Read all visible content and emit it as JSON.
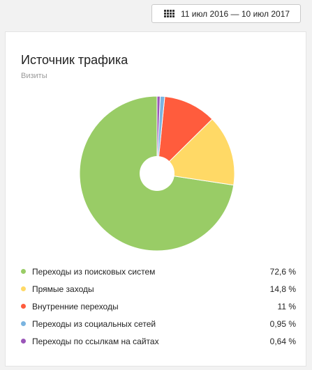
{
  "header": {
    "date_range": "11 июл 2016 — 10 июл 2017",
    "date_icon": "calendar-icon"
  },
  "widget": {
    "title": "Источник трафика",
    "subtitle": "Визиты"
  },
  "chart_data": {
    "type": "pie",
    "donut": true,
    "categories": [
      "Переходы из поисковых систем",
      "Прямые заходы",
      "Внутренние переходы",
      "Переходы из социальных сетей",
      "Переходы по ссылкам на сайтах"
    ],
    "values": [
      72.6,
      14.8,
      11,
      0.95,
      0.64
    ],
    "value_labels": [
      "72,6 %",
      "14,8 %",
      "11 %",
      "0,95 %",
      "0,64 %"
    ],
    "colors": [
      "#99cc66",
      "#ffd966",
      "#ff5c3d",
      "#7ab4e0",
      "#9a55b8"
    ],
    "legend": "bottom"
  }
}
